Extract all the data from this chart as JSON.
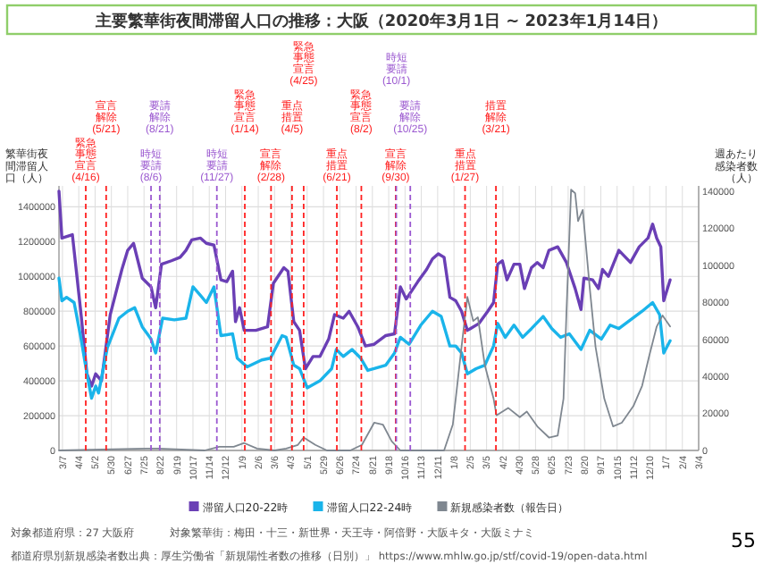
{
  "chart_data": {
    "type": "line",
    "title": "主要繁華街夜間滞留人口の推移：大阪（2020年3月1日 ~ 2023年1月14日）",
    "ylabel": "繁華街夜間滞留人口（人）",
    "y2label": "週あたり感染者数（人）",
    "xlim": [
      "2020-03-01",
      "2023-03-04"
    ],
    "xticks": [
      {
        "value": "2020-03-07",
        "label": "3/7"
      },
      {
        "value": "2020-04-04",
        "label": "4/4"
      },
      {
        "value": "2020-05-02",
        "label": "5/2"
      },
      {
        "value": "2020-05-30",
        "label": "5/30"
      },
      {
        "value": "2020-06-27",
        "label": "6/27"
      },
      {
        "value": "2020-07-25",
        "label": "7/25"
      },
      {
        "value": "2020-08-22",
        "label": "8/22"
      },
      {
        "value": "2020-09-19",
        "label": "9/19"
      },
      {
        "value": "2020-10-17",
        "label": "10/17"
      },
      {
        "value": "2020-11-14",
        "label": "11/14"
      },
      {
        "value": "2020-12-12",
        "label": "12/12"
      },
      {
        "value": "2021-01-09",
        "label": "1/9"
      },
      {
        "value": "2021-02-06",
        "label": "2/6"
      },
      {
        "value": "2021-03-06",
        "label": "3/6"
      },
      {
        "value": "2021-04-03",
        "label": "4/3"
      },
      {
        "value": "2021-05-01",
        "label": "5/1"
      },
      {
        "value": "2021-05-29",
        "label": "5/29"
      },
      {
        "value": "2021-06-26",
        "label": "6/26"
      },
      {
        "value": "2021-07-24",
        "label": "7/24"
      },
      {
        "value": "2021-08-21",
        "label": "8/21"
      },
      {
        "value": "2021-09-18",
        "label": "9/18"
      },
      {
        "value": "2021-10-16",
        "label": "10/16"
      },
      {
        "value": "2021-11-13",
        "label": "11/13"
      },
      {
        "value": "2021-12-11",
        "label": "12/11"
      },
      {
        "value": "2022-01-08",
        "label": "1/8"
      },
      {
        "value": "2022-02-05",
        "label": "2/5"
      },
      {
        "value": "2022-03-05",
        "label": "3/5"
      },
      {
        "value": "2022-04-02",
        "label": "4/2"
      },
      {
        "value": "2022-04-30",
        "label": "4/30"
      },
      {
        "value": "2022-05-28",
        "label": "5/28"
      },
      {
        "value": "2022-06-25",
        "label": "6/25"
      },
      {
        "value": "2022-07-23",
        "label": "7/23"
      },
      {
        "value": "2022-08-20",
        "label": "8/20"
      },
      {
        "value": "2022-09-17",
        "label": "9/17"
      },
      {
        "value": "2022-10-15",
        "label": "10/15"
      },
      {
        "value": "2022-11-12",
        "label": "11/12"
      },
      {
        "value": "2022-12-10",
        "label": "12/10"
      },
      {
        "value": "2023-01-07",
        "label": "1/7"
      },
      {
        "value": "2023-02-04",
        "label": "2/4"
      },
      {
        "value": "2023-03-04",
        "label": "3/4"
      }
    ],
    "ylim": [
      0,
      1520000
    ],
    "yticks": [
      0,
      200000,
      400000,
      600000,
      800000,
      1000000,
      1200000,
      1400000
    ],
    "y2lim": [
      0,
      143000
    ],
    "y2ticks": [
      0,
      20000,
      40000,
      60000,
      80000,
      100000,
      120000,
      140000
    ],
    "grid": true,
    "legend": "bottom",
    "series": [
      {
        "name": "滞留人口20-22時",
        "color": "#6a3fb5",
        "x": [
          "2020-03-01",
          "2020-03-06",
          "2020-03-24",
          "2020-04-08",
          "2020-04-18",
          "2020-04-26",
          "2020-05-03",
          "2020-05-13",
          "2020-05-28",
          "2020-06-17",
          "2020-06-27",
          "2020-07-07",
          "2020-07-22",
          "2020-08-06",
          "2020-08-14",
          "2020-08-24",
          "2020-09-10",
          "2020-09-25",
          "2020-10-05",
          "2020-10-15",
          "2020-10-30",
          "2020-11-09",
          "2020-11-22",
          "2020-12-04",
          "2020-12-14",
          "2020-12-24",
          "2020-12-29",
          "2021-01-05",
          "2021-01-13",
          "2021-02-02",
          "2021-02-22",
          "2021-03-04",
          "2021-03-22",
          "2021-03-29",
          "2021-04-08",
          "2021-04-18",
          "2021-04-28",
          "2021-05-11",
          "2021-05-23",
          "2021-06-07",
          "2021-06-17",
          "2021-07-02",
          "2021-07-12",
          "2021-07-27",
          "2021-08-09",
          "2021-08-24",
          "2021-09-13",
          "2021-09-28",
          "2021-10-08",
          "2021-10-18",
          "2021-11-07",
          "2021-11-22",
          "2021-12-02",
          "2021-12-12",
          "2021-12-22",
          "2022-01-01",
          "2022-01-11",
          "2022-01-21",
          "2022-01-31",
          "2022-02-05",
          "2022-02-20",
          "2022-03-07",
          "2022-03-17",
          "2022-03-24",
          "2022-04-01",
          "2022-04-09",
          "2022-04-21",
          "2022-05-01",
          "2022-05-09",
          "2022-05-21",
          "2022-05-31",
          "2022-06-10",
          "2022-06-20",
          "2022-07-05",
          "2022-07-20",
          "2022-08-04",
          "2022-08-14",
          "2022-08-19",
          "2022-09-03",
          "2022-09-13",
          "2022-09-20",
          "2022-09-30",
          "2022-10-18",
          "2022-11-07",
          "2022-11-22",
          "2022-12-07",
          "2022-12-15",
          "2022-12-22",
          "2022-12-29",
          "2023-01-03",
          "2023-01-14"
        ],
        "values": [
          1490000,
          1220000,
          1240000,
          780000,
          440000,
          370000,
          440000,
          400000,
          780000,
          1040000,
          1150000,
          1190000,
          990000,
          940000,
          820000,
          1070000,
          1090000,
          1110000,
          1150000,
          1210000,
          1220000,
          1190000,
          1180000,
          980000,
          970000,
          1030000,
          740000,
          820000,
          690000,
          690000,
          710000,
          960000,
          1050000,
          1030000,
          740000,
          690000,
          470000,
          540000,
          540000,
          640000,
          780000,
          760000,
          800000,
          710000,
          600000,
          610000,
          660000,
          670000,
          940000,
          870000,
          970000,
          1040000,
          1100000,
          1130000,
          1110000,
          880000,
          860000,
          800000,
          690000,
          700000,
          730000,
          800000,
          850000,
          1070000,
          1090000,
          980000,
          1070000,
          1070000,
          930000,
          1050000,
          1080000,
          1050000,
          1150000,
          1170000,
          1080000,
          930000,
          810000,
          990000,
          980000,
          930000,
          1040000,
          1000000,
          1150000,
          1080000,
          1170000,
          1220000,
          1300000,
          1220000,
          1170000,
          860000,
          980000
        ]
      },
      {
        "name": "滞留人口22-24時",
        "color": "#1ab4ea",
        "x": [
          "2020-03-01",
          "2020-03-06",
          "2020-03-14",
          "2020-03-27",
          "2020-04-08",
          "2020-04-18",
          "2020-04-26",
          "2020-05-03",
          "2020-05-08",
          "2020-05-23",
          "2020-06-12",
          "2020-06-27",
          "2020-07-09",
          "2020-07-22",
          "2020-08-06",
          "2020-08-14",
          "2020-08-26",
          "2020-09-15",
          "2020-10-05",
          "2020-10-17",
          "2020-10-30",
          "2020-11-09",
          "2020-11-22",
          "2020-12-04",
          "2020-12-24",
          "2021-01-01",
          "2021-01-18",
          "2021-02-12",
          "2021-02-27",
          "2021-03-19",
          "2021-03-26",
          "2021-04-08",
          "2021-04-18",
          "2021-05-01",
          "2021-05-23",
          "2021-06-12",
          "2021-06-20",
          "2021-07-02",
          "2021-07-17",
          "2021-08-01",
          "2021-08-13",
          "2021-08-24",
          "2021-09-13",
          "2021-09-28",
          "2021-10-08",
          "2021-10-23",
          "2021-11-12",
          "2021-12-02",
          "2021-12-17",
          "2022-01-01",
          "2022-01-11",
          "2022-01-21",
          "2022-01-31",
          "2022-02-15",
          "2022-03-02",
          "2022-03-17",
          "2022-03-24",
          "2022-04-06",
          "2022-04-21",
          "2022-05-06",
          "2022-05-21",
          "2022-06-10",
          "2022-06-25",
          "2022-07-10",
          "2022-07-25",
          "2022-08-14",
          "2022-08-29",
          "2022-09-18",
          "2022-10-03",
          "2022-10-18",
          "2022-11-07",
          "2022-11-27",
          "2022-12-15",
          "2022-12-27",
          "2023-01-03",
          "2023-01-14"
        ],
        "values": [
          990000,
          860000,
          880000,
          850000,
          640000,
          440000,
          300000,
          370000,
          330000,
          590000,
          760000,
          800000,
          820000,
          710000,
          640000,
          560000,
          760000,
          750000,
          760000,
          940000,
          890000,
          850000,
          940000,
          660000,
          670000,
          530000,
          480000,
          520000,
          530000,
          660000,
          650000,
          490000,
          470000,
          360000,
          400000,
          470000,
          580000,
          540000,
          580000,
          530000,
          460000,
          470000,
          490000,
          560000,
          650000,
          610000,
          720000,
          800000,
          770000,
          600000,
          600000,
          560000,
          440000,
          470000,
          490000,
          600000,
          730000,
          650000,
          720000,
          650000,
          700000,
          770000,
          700000,
          650000,
          670000,
          580000,
          690000,
          640000,
          720000,
          700000,
          750000,
          800000,
          850000,
          780000,
          560000,
          630000
        ]
      },
      {
        "name": "新規感染者数（報告日）",
        "color": "#7f8790",
        "axis": "y2",
        "x": [
          "2020-03-01",
          "2020-07-29",
          "2020-08-18",
          "2020-11-06",
          "2020-12-01",
          "2020-12-26",
          "2021-01-13",
          "2021-02-04",
          "2021-03-06",
          "2021-03-26",
          "2021-04-15",
          "2021-04-25",
          "2021-05-15",
          "2021-06-04",
          "2021-06-24",
          "2021-07-14",
          "2021-08-03",
          "2021-08-24",
          "2021-09-08",
          "2021-09-23",
          "2021-10-08",
          "2021-12-22",
          "2022-01-06",
          "2022-01-21",
          "2022-01-31",
          "2022-02-10",
          "2022-02-18",
          "2022-03-02",
          "2022-03-17",
          "2022-03-22",
          "2022-04-11",
          "2022-05-01",
          "2022-05-13",
          "2022-05-31",
          "2022-06-20",
          "2022-07-05",
          "2022-07-15",
          "2022-07-20",
          "2022-07-28",
          "2022-08-04",
          "2022-08-09",
          "2022-08-17",
          "2022-08-29",
          "2022-09-08",
          "2022-09-23",
          "2022-10-08",
          "2022-10-23",
          "2022-11-12",
          "2022-11-27",
          "2022-12-09",
          "2022-12-22",
          "2023-01-01",
          "2023-01-14"
        ],
        "values": [
          0,
          1000,
          1000,
          0,
          2000,
          2000,
          4000,
          1000,
          0,
          1000,
          3000,
          7000,
          3000,
          0,
          0,
          0,
          3000,
          15000,
          14000,
          5000,
          0,
          0,
          14000,
          56000,
          83000,
          70000,
          72000,
          46000,
          28000,
          19000,
          23000,
          18000,
          21000,
          13000,
          7000,
          8000,
          28000,
          74000,
          141000,
          139000,
          124000,
          130000,
          88000,
          56000,
          28000,
          13000,
          15000,
          24000,
          35000,
          51000,
          67000,
          73000,
          67000
        ]
      }
    ],
    "ref_lines": [
      {
        "axis": "x",
        "value": "2020-04-16",
        "label": "緊急事態宣言(4/16)",
        "color": "#ff2020",
        "line_style": "dashed"
      },
      {
        "axis": "x",
        "value": "2020-05-21",
        "label": "宣言解除(5/21)",
        "color": "#ff2020",
        "line_style": "dashed"
      },
      {
        "axis": "x",
        "value": "2020-08-06",
        "label": "時短要請(8/6)",
        "color": "#9b59d0",
        "line_style": "dashed"
      },
      {
        "axis": "x",
        "value": "2020-08-21",
        "label": "要請解除(8/21)",
        "color": "#9b59d0",
        "line_style": "dashed"
      },
      {
        "axis": "x",
        "value": "2020-11-27",
        "label": "時短要請(11/27)",
        "color": "#9b59d0",
        "line_style": "dashed"
      },
      {
        "axis": "x",
        "value": "2021-01-14",
        "label": "緊急事態宣言(1/14)",
        "color": "#ff2020",
        "line_style": "dashed"
      },
      {
        "axis": "x",
        "value": "2021-02-28",
        "label": "宣言解除(2/28)",
        "color": "#ff2020",
        "line_style": "dashed"
      },
      {
        "axis": "x",
        "value": "2021-04-05",
        "label": "重点措置(4/5)",
        "color": "#ff2020",
        "line_style": "dashed"
      },
      {
        "axis": "x",
        "value": "2021-04-25",
        "label": "緊急事態宣言(4/25)",
        "color": "#ff2020",
        "line_style": "dashed"
      },
      {
        "axis": "x",
        "value": "2021-06-21",
        "label": "重点措置(6/21)",
        "color": "#ff2020",
        "line_style": "dashed"
      },
      {
        "axis": "x",
        "value": "2021-08-02",
        "label": "緊急事態宣言(8/2)",
        "color": "#ff2020",
        "line_style": "dashed"
      },
      {
        "axis": "x",
        "value": "2021-09-30",
        "label": "宣言解除(9/30)",
        "color": "#ff2020",
        "line_style": "dashed"
      },
      {
        "axis": "x",
        "value": "2021-10-01",
        "label": "時短要請(10/1)",
        "color": "#9b59d0",
        "line_style": "dashed"
      },
      {
        "axis": "x",
        "value": "2021-10-25",
        "label": "要請解除(10/25)",
        "color": "#9b59d0",
        "line_style": "dashed"
      },
      {
        "axis": "x",
        "value": "2022-01-27",
        "label": "重点措置(1/27)",
        "color": "#ff2020",
        "line_style": "dashed"
      },
      {
        "axis": "x",
        "value": "2022-03-21",
        "label": "措置解除(3/21)",
        "color": "#ff2020",
        "line_style": "dashed"
      }
    ],
    "annotations": [
      "対象都道府県：27 大阪府",
      "対象繁華街：梅田・十三・新世界・天王寺・阿倍野・大阪キタ・大阪ミナミ",
      "都道府県別新規感染者数出典：厚生労働省「新規陽性者数の推移（日別）」 https://www.mhlw.go.jp/stf/covid-19/open-data.html",
      "55"
    ]
  }
}
